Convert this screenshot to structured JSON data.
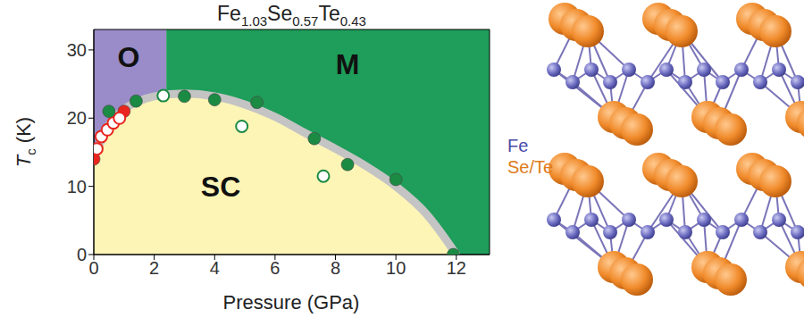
{
  "chart_data": {
    "type": "scatter",
    "title": "Fe1.03Se0.57Te0.43",
    "x_label": "Pressure (GPa)",
    "y_label": "Tc (K)",
    "xlim": [
      0,
      13.1
    ],
    "ylim": [
      0,
      33
    ],
    "xticks": [
      0,
      2,
      4,
      6,
      8,
      10,
      12
    ],
    "yticks": [
      0,
      10,
      20,
      30
    ],
    "regions": [
      {
        "label": "O",
        "color": "#9a8cc8",
        "x_range": [
          0,
          2.4
        ]
      },
      {
        "label": "M",
        "color": "#1f9d5a",
        "x_range": [
          2.4,
          13.1
        ]
      },
      {
        "label": "SC",
        "color": "#fdf5b6"
      }
    ],
    "boundary": {
      "color": "#c4c4c4",
      "x": [
        0,
        0.5,
        1,
        1.5,
        2,
        3,
        4,
        5,
        6,
        7,
        8,
        9,
        10,
        11,
        12
      ],
      "values": [
        14,
        19,
        21.3,
        22.5,
        23.2,
        23.6,
        23.2,
        22,
        20.2,
        17.8,
        15.5,
        13,
        10,
        6,
        0
      ]
    },
    "series": [
      {
        "color": "#e8261e",
        "marker": "filled",
        "x": [
          0,
          1.0
        ],
        "values": [
          14,
          21
        ]
      },
      {
        "color": "#e8261e",
        "marker": "open",
        "x": [
          0.1,
          0.25,
          0.45,
          0.65,
          0.85
        ],
        "values": [
          15.5,
          17.3,
          18.3,
          19.3,
          20
        ]
      },
      {
        "color": "#1b8a43",
        "marker": "filled",
        "x": [
          0.5,
          1.4,
          3,
          4,
          5.4,
          7.3,
          8.4,
          10,
          11.9
        ],
        "values": [
          21,
          22.5,
          23.2,
          22.7,
          22.3,
          17,
          13.2,
          11,
          0
        ]
      },
      {
        "color": "#1b8a43",
        "marker": "open",
        "x": [
          2.3,
          4.9,
          7.6
        ],
        "values": [
          23.3,
          18.8,
          11.5
        ]
      }
    ]
  },
  "structure": {
    "labels": [
      {
        "text": "Fe",
        "color": "#4a4aa8"
      },
      {
        "text": "Se/Te",
        "color": "#e07b1c"
      }
    ]
  }
}
